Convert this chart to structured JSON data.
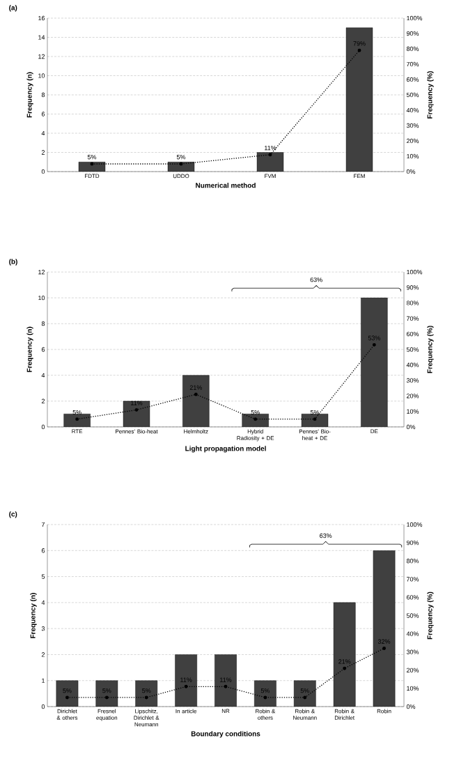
{
  "chart_data": [
    {
      "type": "bar",
      "title": "(a)",
      "xlabel": "Numerical method",
      "ylabel": "Frequency (n)",
      "y2label": "Frequency (%)",
      "categories": [
        "FDTD",
        "UDDO",
        "FVM",
        "FEM"
      ],
      "series": [
        {
          "color": "#404040",
          "values": [
            1,
            1,
            2,
            15
          ]
        },
        {
          "type": "line",
          "axis": "y2",
          "color": "#000000",
          "marker": "circle",
          "line_style": "dotted",
          "values": [
            5,
            5,
            11,
            79
          ],
          "value_labels": [
            "5%",
            "5%",
            "11%",
            "79%"
          ]
        }
      ],
      "ylim": [
        0,
        16
      ],
      "yticks": [
        0,
        2,
        4,
        6,
        8,
        10,
        12,
        14,
        16
      ],
      "y2lim": [
        0,
        100
      ],
      "y2ticks": [
        {
          "value": 0,
          "label": "0%"
        },
        {
          "value": 10,
          "label": "10%"
        },
        {
          "value": 20,
          "label": "20%"
        },
        {
          "value": 30,
          "label": "30%"
        },
        {
          "value": 40,
          "label": "40%"
        },
        {
          "value": 50,
          "label": "50%"
        },
        {
          "value": 60,
          "label": "60%"
        },
        {
          "value": 70,
          "label": "70%"
        },
        {
          "value": 80,
          "label": "80%"
        },
        {
          "value": 90,
          "label": "90%"
        },
        {
          "value": 100,
          "label": "100%"
        }
      ],
      "grid": "y"
    },
    {
      "type": "bar",
      "title": "(b)",
      "xlabel": "Light propagation model",
      "ylabel": "Frequency (n)",
      "y2label": "Frequency (%)",
      "categories": [
        "RTE",
        "Pennes’ Bio-heat",
        "Helmholtz",
        "Hybrid Radiosity + DE",
        "Pennes’ Bio-heat + DE",
        "DE"
      ],
      "series": [
        {
          "color": "#404040",
          "values": [
            1,
            2,
            4,
            1,
            1,
            10
          ]
        },
        {
          "type": "line",
          "axis": "y2",
          "color": "#000000",
          "marker": "circle",
          "line_style": "dotted",
          "values": [
            5,
            11,
            21,
            5,
            5,
            53
          ],
          "value_labels": [
            "5%",
            "11%",
            "21%",
            "5%",
            "5%",
            "53%"
          ]
        }
      ],
      "ylim": [
        0,
        12
      ],
      "yticks": [
        0,
        2,
        4,
        6,
        8,
        10,
        12
      ],
      "y2lim": [
        0,
        100
      ],
      "y2ticks": [
        {
          "value": 0,
          "label": "0%"
        },
        {
          "value": 10,
          "label": "10%"
        },
        {
          "value": 20,
          "label": "20%"
        },
        {
          "value": 30,
          "label": "30%"
        },
        {
          "value": 40,
          "label": "40%"
        },
        {
          "value": 50,
          "label": "50%"
        },
        {
          "value": 60,
          "label": "60%"
        },
        {
          "value": 70,
          "label": "70%"
        },
        {
          "value": 80,
          "label": "80%"
        },
        {
          "value": 90,
          "label": "90%"
        },
        {
          "value": 100,
          "label": "100%"
        }
      ],
      "grid": "y",
      "annotations": [
        "63%"
      ]
    },
    {
      "type": "bar",
      "title": "(c)",
      "xlabel": "Boundary conditions",
      "ylabel": "Frequency (n)",
      "y2label": "Frequency (%)",
      "categories": [
        "Dirichlet & others",
        "Fresnel equation",
        "Lipschitz, Dirichlet & Neumann",
        "In article",
        "NR",
        "Robin & others",
        "Robin & Neumann",
        "Robin & Dirichlet",
        "Robin"
      ],
      "series": [
        {
          "color": "#404040",
          "values": [
            1,
            1,
            1,
            2,
            2,
            1,
            1,
            4,
            6
          ]
        },
        {
          "type": "line",
          "axis": "y2",
          "color": "#000000",
          "marker": "circle",
          "line_style": "dotted",
          "values": [
            5,
            5,
            5,
            11,
            11,
            5,
            5,
            21,
            32
          ],
          "value_labels": [
            "5%",
            "5%",
            "5%",
            "11%",
            "11%",
            "5%",
            "5%",
            "21%",
            "32%"
          ]
        }
      ],
      "ylim": [
        0,
        7
      ],
      "yticks": [
        0,
        1,
        2,
        3,
        4,
        5,
        6,
        7
      ],
      "y2lim": [
        0,
        100
      ],
      "y2ticks": [
        {
          "value": 0,
          "label": "0%"
        },
        {
          "value": 10,
          "label": "10%"
        },
        {
          "value": 20,
          "label": "20%"
        },
        {
          "value": 30,
          "label": "30%"
        },
        {
          "value": 40,
          "label": "40%"
        },
        {
          "value": 50,
          "label": "50%"
        },
        {
          "value": 60,
          "label": "60%"
        },
        {
          "value": 70,
          "label": "70%"
        },
        {
          "value": 80,
          "label": "80%"
        },
        {
          "value": 90,
          "label": "90%"
        },
        {
          "value": 100,
          "label": "100%"
        }
      ],
      "grid": "y",
      "annotations": [
        "63%"
      ]
    }
  ]
}
